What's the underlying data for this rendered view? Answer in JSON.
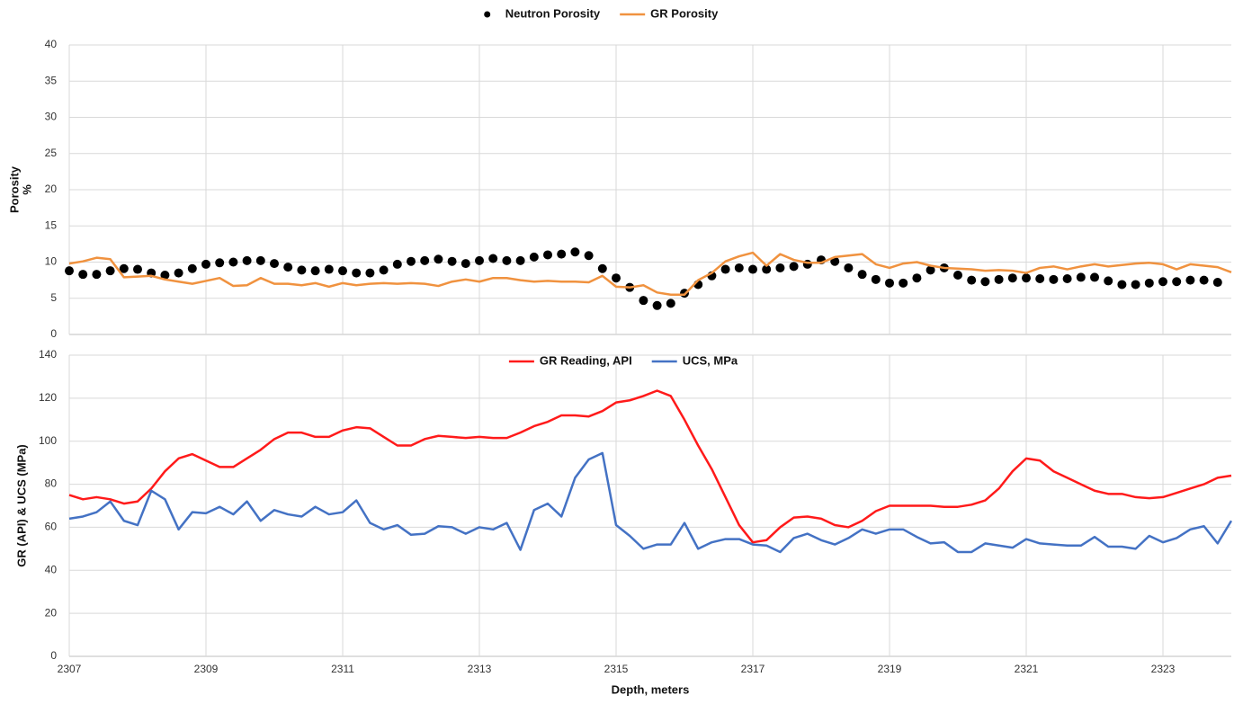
{
  "chart_data": [
    {
      "type": "line",
      "ylabel": [
        "Porosity",
        "%"
      ],
      "legend": "top",
      "grid": true,
      "x": [
        2307,
        2307.2,
        2307.4,
        2307.6,
        2307.8,
        2308,
        2308.2,
        2308.4,
        2308.6,
        2308.8,
        2309,
        2309.2,
        2309.4,
        2309.6,
        2309.8,
        2310,
        2310.2,
        2310.4,
        2310.6,
        2310.8,
        2311,
        2311.2,
        2311.4,
        2311.6,
        2311.8,
        2312,
        2312.2,
        2312.4,
        2312.6,
        2312.8,
        2313,
        2313.2,
        2313.4,
        2313.6,
        2313.8,
        2314,
        2314.2,
        2314.4,
        2314.6,
        2314.8,
        2315,
        2315.2,
        2315.4,
        2315.6,
        2315.8,
        2316,
        2316.2,
        2316.4,
        2316.6,
        2316.8,
        2317,
        2317.2,
        2317.4,
        2317.6,
        2317.8,
        2318,
        2318.2,
        2318.4,
        2318.6,
        2318.8,
        2319,
        2319.2,
        2319.4,
        2319.6,
        2319.8,
        2320,
        2320.2,
        2320.4,
        2320.6,
        2320.8,
        2321,
        2321.2,
        2321.4,
        2321.6,
        2321.8,
        2322,
        2322.2,
        2322.4,
        2322.6,
        2322.8,
        2323,
        2323.2,
        2323.4,
        2323.6,
        2323.8,
        2324
      ],
      "xlim": [
        2307,
        2324
      ],
      "xticks": [
        2307,
        2309,
        2311,
        2313,
        2315,
        2317,
        2319,
        2321,
        2323
      ],
      "ylim": [
        0,
        40
      ],
      "yticks": [
        0,
        5,
        10,
        15,
        20,
        25,
        30,
        35,
        40
      ],
      "series": [
        {
          "name": "Neutron Porosity",
          "color": "#000000",
          "style": "dots",
          "values": [
            8.8,
            8.3,
            8.3,
            8.8,
            9.1,
            9.0,
            8.5,
            8.2,
            8.5,
            9.1,
            9.7,
            9.9,
            10.0,
            10.2,
            10.2,
            9.8,
            9.3,
            8.9,
            8.8,
            9.0,
            8.8,
            8.5,
            8.5,
            8.9,
            9.7,
            10.1,
            10.2,
            10.4,
            10.1,
            9.8,
            10.2,
            10.5,
            10.2,
            10.2,
            10.7,
            11.0,
            11.1,
            11.4,
            10.9,
            9.1,
            7.8,
            6.5,
            4.7,
            4.0,
            4.3,
            5.7,
            6.9,
            8.1,
            9.0,
            9.2,
            9.0,
            9.0,
            9.2,
            9.4,
            9.7,
            10.3,
            10.1,
            9.2,
            8.3,
            7.6,
            7.1,
            7.1,
            7.8,
            8.9,
            9.2,
            8.2,
            7.5,
            7.3,
            7.6,
            7.8,
            7.8,
            7.7,
            7.6,
            7.7,
            7.9,
            7.9,
            7.4,
            6.9,
            6.9,
            7.1,
            7.3,
            7.3,
            7.5,
            7.5,
            7.2,
            null
          ]
        },
        {
          "name": "GR Porosity",
          "color": "#f0923f",
          "style": "line",
          "values": [
            9.8,
            10.1,
            10.6,
            10.4,
            7.9,
            8.0,
            8.1,
            7.6,
            7.3,
            7.0,
            7.4,
            7.8,
            6.7,
            6.8,
            7.8,
            7.0,
            7.0,
            6.8,
            7.1,
            6.6,
            7.1,
            6.8,
            7.0,
            7.1,
            7.0,
            7.1,
            7.0,
            6.7,
            7.3,
            7.6,
            7.3,
            7.8,
            7.8,
            7.5,
            7.3,
            7.4,
            7.3,
            7.3,
            7.2,
            8.1,
            6.6,
            6.5,
            6.8,
            5.8,
            5.5,
            5.5,
            7.5,
            8.5,
            10.1,
            10.8,
            11.3,
            9.5,
            11.1,
            10.3,
            9.9,
            9.9,
            10.7,
            10.9,
            11.1,
            9.7,
            9.2,
            9.8,
            10.0,
            9.5,
            9.2,
            9.1,
            9.0,
            8.8,
            8.9,
            8.8,
            8.5,
            9.2,
            9.4,
            9.0,
            9.4,
            9.7,
            9.4,
            9.6,
            9.8,
            9.9,
            9.7,
            9.0,
            9.7,
            9.5,
            9.3,
            8.6
          ]
        }
      ]
    },
    {
      "type": "line",
      "xlabel": "Depth, meters",
      "ylabel": [
        "GR (API) & UCS (MPa)"
      ],
      "legend": "upper center",
      "grid": true,
      "x": [
        2307,
        2307.2,
        2307.4,
        2307.6,
        2307.8,
        2308,
        2308.2,
        2308.4,
        2308.6,
        2308.8,
        2309,
        2309.2,
        2309.4,
        2309.6,
        2309.8,
        2310,
        2310.2,
        2310.4,
        2310.6,
        2310.8,
        2311,
        2311.2,
        2311.4,
        2311.6,
        2311.8,
        2312,
        2312.2,
        2312.4,
        2312.6,
        2312.8,
        2313,
        2313.2,
        2313.4,
        2313.6,
        2313.8,
        2314,
        2314.2,
        2314.4,
        2314.6,
        2314.8,
        2315,
        2315.2,
        2315.4,
        2315.6,
        2315.8,
        2316,
        2316.2,
        2316.4,
        2316.6,
        2316.8,
        2317,
        2317.2,
        2317.4,
        2317.6,
        2317.8,
        2318,
        2318.2,
        2318.4,
        2318.6,
        2318.8,
        2319,
        2319.2,
        2319.4,
        2319.6,
        2319.8,
        2320,
        2320.2,
        2320.4,
        2320.6,
        2320.8,
        2321,
        2321.2,
        2321.4,
        2321.6,
        2321.8,
        2322,
        2322.2,
        2322.4,
        2322.6,
        2322.8,
        2323,
        2323.2,
        2323.4,
        2323.6,
        2323.8,
        2324
      ],
      "xlim": [
        2307,
        2324
      ],
      "xticks": [
        2307,
        2309,
        2311,
        2313,
        2315,
        2317,
        2319,
        2321,
        2323
      ],
      "ylim": [
        0,
        140
      ],
      "yticks": [
        0,
        20,
        40,
        60,
        80,
        100,
        120,
        140
      ],
      "series": [
        {
          "name": "GR Reading, API",
          "color": "#ff1a1a",
          "style": "line",
          "values": [
            75,
            73,
            74,
            73,
            71,
            72,
            78,
            86,
            92,
            94,
            91,
            88,
            88,
            92,
            96,
            101,
            104,
            104,
            102,
            102,
            105,
            106.5,
            106,
            102,
            98,
            98,
            101,
            102.5,
            102,
            101.5,
            102,
            101.5,
            101.5,
            104,
            107,
            109,
            112,
            112,
            111.5,
            114,
            118,
            119,
            121,
            123.5,
            121,
            110,
            98,
            87,
            74,
            61,
            53,
            54,
            60,
            64.5,
            65,
            64,
            61,
            60,
            63,
            67.5,
            70,
            70,
            70,
            70,
            69.5,
            69.5,
            70.5,
            72.5,
            78,
            86,
            92,
            91,
            86,
            83,
            80,
            77,
            75.5,
            75.5,
            74,
            73.5,
            74,
            76,
            78,
            80,
            83,
            84
          ]
        },
        {
          "name": "UCS, MPa",
          "color": "#4472c4",
          "style": "line",
          "values": [
            64,
            65,
            67,
            72,
            63,
            61,
            77,
            73,
            59,
            67,
            66.5,
            69.5,
            66,
            72,
            63,
            68,
            66,
            65,
            69.5,
            66,
            67,
            72.5,
            62,
            59,
            61,
            56.5,
            57,
            60.5,
            60,
            57,
            60,
            59,
            62,
            49.5,
            68,
            71,
            65,
            83,
            91.5,
            94.5,
            61,
            56,
            50,
            52,
            52,
            62,
            50,
            53,
            54.5,
            54.5,
            52,
            51.5,
            48.5,
            55,
            57,
            54,
            52,
            55,
            59,
            57,
            59,
            59,
            55.5,
            52.5,
            53,
            48.5,
            48.5,
            52.5,
            51.5,
            50.5,
            54.5,
            52.5,
            52,
            51.5,
            51.5,
            55.5,
            51,
            51,
            50,
            56,
            53,
            55,
            59,
            60.5,
            52.5,
            63
          ]
        }
      ]
    }
  ]
}
